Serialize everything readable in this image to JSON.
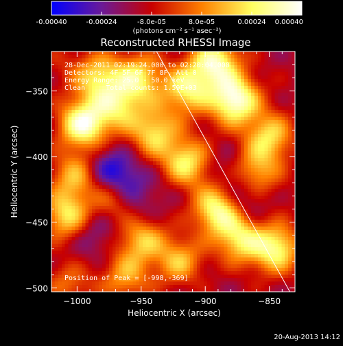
{
  "colorbar": {
    "tick_labels": [
      "-0.00040",
      "-0.00024",
      "-8.0e-05",
      "8.0e-05",
      "0.00024",
      "0.00040"
    ],
    "tick_values": [
      -0.0004,
      -0.00024,
      -8e-05,
      8e-05,
      0.00024,
      0.0004
    ],
    "range": [
      -0.0004,
      0.0004
    ],
    "units_label": "(photons cm⁻² s⁻¹ asec⁻²)",
    "colors": [
      "#0000ff",
      "#6a1a98",
      "#c80000",
      "#ff8000",
      "#ffff60",
      "#ffffff"
    ]
  },
  "chart_data": {
    "type": "heatmap",
    "title": "Reconstructed RHESSI Image",
    "xlabel": "Heliocentric X (arcsec)",
    "ylabel": "Heliocentric Y (arcsec)",
    "xlim": [
      -1020,
      -830
    ],
    "ylim": [
      -503,
      -320
    ],
    "x_ticks": [
      -1000,
      -950,
      -900,
      -850
    ],
    "x_tick_labels": [
      "−1000",
      "−950",
      "−900",
      "−850"
    ],
    "y_ticks": [
      -350,
      -400,
      -450,
      -500
    ],
    "y_tick_labels": [
      "−350",
      "−400",
      "−450",
      "−500"
    ],
    "annotations": [
      "28-Dec-2011 02:19:24.000 to 02:20:04.000",
      "Detectors: 4F 5F 6F 7F 8F, Att 0",
      "Energy Range: 25.0 - 50.0 keV",
      "Clean     Total counts: 1.59E+03"
    ],
    "peak_label": "Position of Peak = [-998,-369]",
    "limb_line": [
      [
        -938,
        -320
      ],
      [
        -834,
        -503
      ]
    ],
    "blobs": [
      {
        "x": -877,
        "y": -357,
        "value": 0.00038
      },
      {
        "x": -995,
        "y": -375,
        "value": 0.00036
      },
      {
        "x": -892,
        "y": -328,
        "value": 0.0003
      },
      {
        "x": -913,
        "y": -348,
        "value": 0.00024
      },
      {
        "x": -952,
        "y": -340,
        "value": 0.00022
      },
      {
        "x": -968,
        "y": -362,
        "value": 0.00018
      },
      {
        "x": -983,
        "y": -340,
        "value": 0.0002
      },
      {
        "x": -940,
        "y": -382,
        "value": 0.0002
      },
      {
        "x": -915,
        "y": -405,
        "value": 0.00024
      },
      {
        "x": -890,
        "y": -440,
        "value": 0.00032
      },
      {
        "x": -872,
        "y": -462,
        "value": 0.00026
      },
      {
        "x": -845,
        "y": -470,
        "value": 0.00028
      },
      {
        "x": -850,
        "y": -385,
        "value": 0.0002
      },
      {
        "x": -862,
        "y": -412,
        "value": 0.00018
      },
      {
        "x": -1008,
        "y": -445,
        "value": 0.00022
      },
      {
        "x": -1002,
        "y": -415,
        "value": 0.00014
      },
      {
        "x": -950,
        "y": -462,
        "value": 0.0002
      },
      {
        "x": -972,
        "y": -435,
        "value": 0.0001
      },
      {
        "x": -962,
        "y": -492,
        "value": 0.00012
      },
      {
        "x": -920,
        "y": -480,
        "value": 0.00016
      },
      {
        "x": -1005,
        "y": -495,
        "value": 8e-05
      },
      {
        "x": -975,
        "y": -410,
        "value": -0.00032
      },
      {
        "x": -960,
        "y": -420,
        "value": -0.00026
      },
      {
        "x": -985,
        "y": -455,
        "value": -0.00026
      },
      {
        "x": -955,
        "y": -445,
        "value": -0.00024
      },
      {
        "x": -872,
        "y": -432,
        "value": -0.0003
      },
      {
        "x": -880,
        "y": -410,
        "value": -0.00022
      },
      {
        "x": -862,
        "y": -455,
        "value": -0.00018
      },
      {
        "x": -930,
        "y": -425,
        "value": -0.00016
      },
      {
        "x": -1000,
        "y": -482,
        "value": -0.00018
      },
      {
        "x": -912,
        "y": -495,
        "value": -0.00014
      },
      {
        "x": -845,
        "y": -340,
        "value": -0.00012
      },
      {
        "x": -930,
        "y": -360,
        "value": -8e-05
      },
      {
        "x": -1010,
        "y": -330,
        "value": -6e-05
      },
      {
        "x": -838,
        "y": -430,
        "value": -0.0001
      }
    ]
  },
  "footer": {
    "timestamp": "20-Aug-2013 14:12"
  }
}
